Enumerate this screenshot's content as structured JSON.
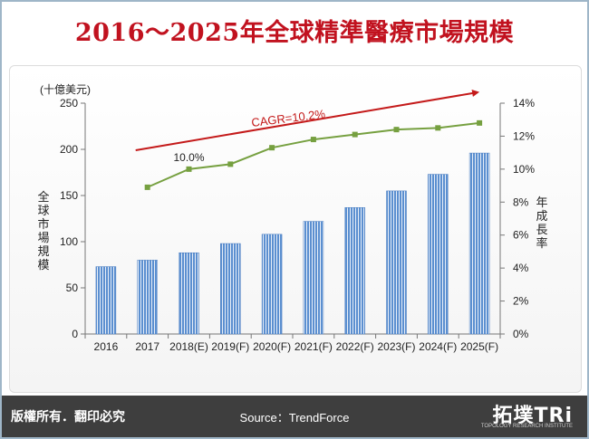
{
  "title": "2016～2025年全球精準醫療市場規模",
  "footer": {
    "copyright": "版權所有．翻印必究",
    "source": "Source：TrendForce"
  },
  "logo": {
    "name": "拓墣TRi",
    "subtitle": "TOPOLOGY RESEARCH INSTITUTE"
  },
  "chart_data": {
    "type": "bar",
    "categories": [
      "2016",
      "2017",
      "2018(E)",
      "2019(F)",
      "2020(F)",
      "2021(F)",
      "2022(F)",
      "2023(F)",
      "2024(F)",
      "2025(F)"
    ],
    "unit_label": "(十億美元)",
    "ylabel": "全球市場規模",
    "y2label": "年成長率",
    "ylim": [
      0,
      250
    ],
    "yticks": [
      0,
      50,
      100,
      150,
      200,
      250
    ],
    "y2lim": [
      0,
      14
    ],
    "y2ticks": [
      "0%",
      "2%",
      "4%",
      "6%",
      "8%",
      "10%",
      "12%",
      "14%"
    ],
    "grid": false,
    "series": [
      {
        "kind": "bar",
        "values": [
          73,
          80,
          88,
          98,
          108,
          122,
          137,
          155,
          173,
          196
        ],
        "color": "#5b8fd0"
      },
      {
        "kind": "line",
        "axis": "right",
        "values": [
          null,
          8.9,
          10.0,
          10.3,
          11.3,
          11.8,
          12.1,
          12.4,
          12.5,
          12.8
        ],
        "color": "#76a040"
      }
    ],
    "annotations": {
      "growth_point_label": "10.0%",
      "cagr_label": "CAGR=10.2%",
      "arrow_color": "#c41a1a"
    }
  }
}
